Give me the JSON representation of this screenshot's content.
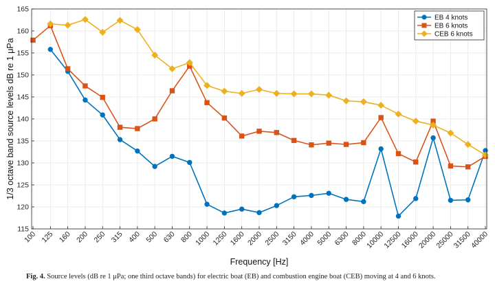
{
  "chart_data": {
    "type": "line",
    "xlabel": "Frequency [Hz]",
    "ylabel": "1/3 octave band source levels dB re 1 μPa",
    "ylim": [
      115,
      165
    ],
    "yticks": [
      115,
      120,
      125,
      130,
      135,
      140,
      145,
      150,
      155,
      160,
      165
    ],
    "grid": true,
    "legend_position": "top-right",
    "categories": [
      "100",
      "125",
      "160",
      "200",
      "250",
      "315",
      "400",
      "500",
      "630",
      "800",
      "1000",
      "1250",
      "1600",
      "2000",
      "2500",
      "3150",
      "4000",
      "5000",
      "6300",
      "8000",
      "10000",
      "12500",
      "16000",
      "20000",
      "25000",
      "31500",
      "40000"
    ],
    "series": [
      {
        "name": "EB 4 knots",
        "color": "#0072BD",
        "marker": "circle",
        "values": [
          null,
          155.8,
          150.8,
          144.3,
          140.9,
          135.3,
          132.7,
          129.2,
          131.5,
          130.1,
          120.6,
          118.6,
          119.5,
          118.7,
          120.3,
          122.3,
          122.6,
          123.1,
          121.7,
          121.2,
          133.2,
          117.9,
          121.9,
          135.7,
          121.5,
          121.6,
          132.8
        ]
      },
      {
        "name": "EB 6 knots",
        "color": "#D95319",
        "marker": "square",
        "values": [
          157.9,
          161.2,
          151.4,
          147.5,
          144.9,
          138.1,
          137.8,
          140.0,
          146.4,
          152.0,
          143.7,
          140.2,
          136.1,
          137.2,
          136.9,
          135.1,
          134.1,
          134.5,
          134.2,
          134.6,
          140.3,
          132.1,
          130.2,
          139.5,
          129.3,
          129.1,
          131.5
        ]
      },
      {
        "name": "CEB 6 knots",
        "color": "#EDB120",
        "marker": "diamond",
        "values": [
          null,
          161.6,
          161.3,
          162.6,
          159.7,
          162.4,
          160.3,
          154.5,
          151.4,
          152.8,
          147.6,
          146.3,
          145.8,
          146.7,
          145.8,
          145.7,
          145.7,
          145.4,
          144.1,
          143.9,
          143.1,
          141.1,
          139.5,
          138.6,
          136.8,
          134.2,
          131.8
        ]
      }
    ]
  },
  "caption": {
    "label": "Fig. 4.",
    "text": "Source levels (dB re 1 μPa; one third octave bands) for electric boat (EB) and combustion engine boat (CEB) moving at 4 and 6 knots."
  }
}
